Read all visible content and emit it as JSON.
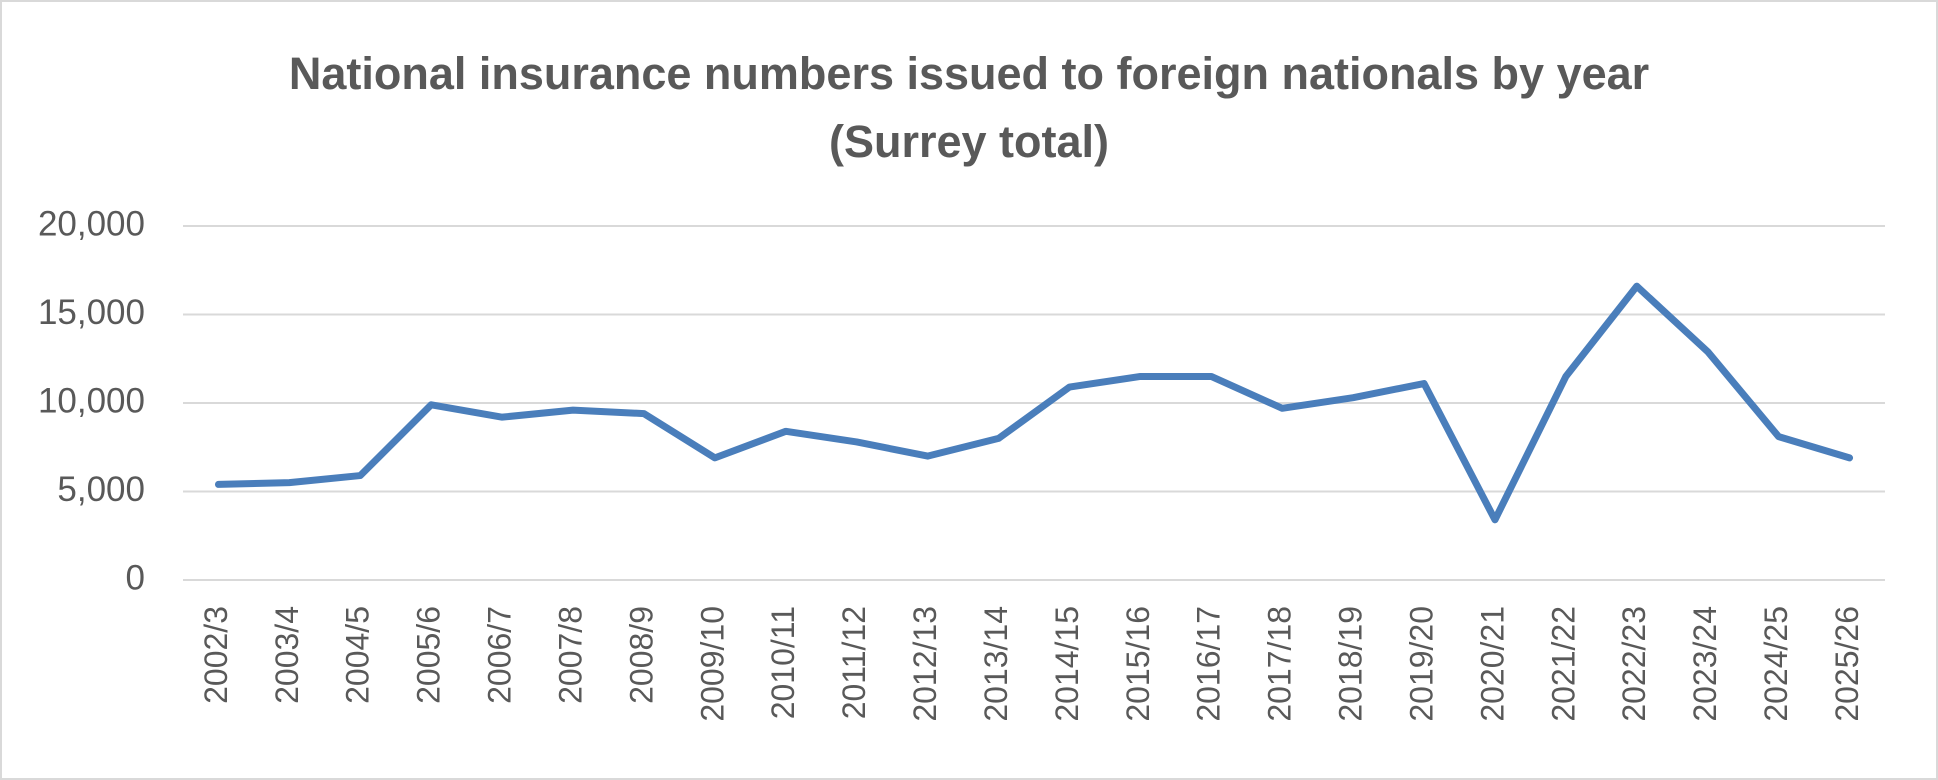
{
  "chart_data": {
    "type": "line",
    "title": "National insurance numbers issued to foreign nationals by year (Surrey total)",
    "categories": [
      "2002/3",
      "2003/4",
      "2004/5",
      "2005/6",
      "2006/7",
      "2007/8",
      "2008/9",
      "2009/10",
      "2010/11",
      "2011/12",
      "2012/13",
      "2013/14",
      "2014/15",
      "2015/16",
      "2016/17",
      "2017/18",
      "2018/19",
      "2019/20",
      "2020/21",
      "2021/22",
      "2022/23",
      "2023/24",
      "2024/25",
      "2025/26"
    ],
    "series": [
      {
        "name": "Surrey total",
        "color": "#4a7ebb",
        "values": [
          5400,
          5500,
          5900,
          9900,
          9200,
          9600,
          9400,
          6900,
          8400,
          7800,
          7000,
          8000,
          10900,
          11500,
          11500,
          9700,
          10300,
          11100,
          3400,
          11500,
          16600,
          12900,
          8100,
          6900
        ]
      }
    ],
    "ylim": [
      0,
      20000
    ],
    "yticks": [
      0,
      {
        "value": 5000,
        "label": "5,000"
      },
      {
        "value": 10000,
        "label": "10,000"
      },
      {
        "value": 15000,
        "label": "15,000"
      },
      {
        "value": 20000,
        "label": "20,000"
      }
    ],
    "grid": true
  }
}
